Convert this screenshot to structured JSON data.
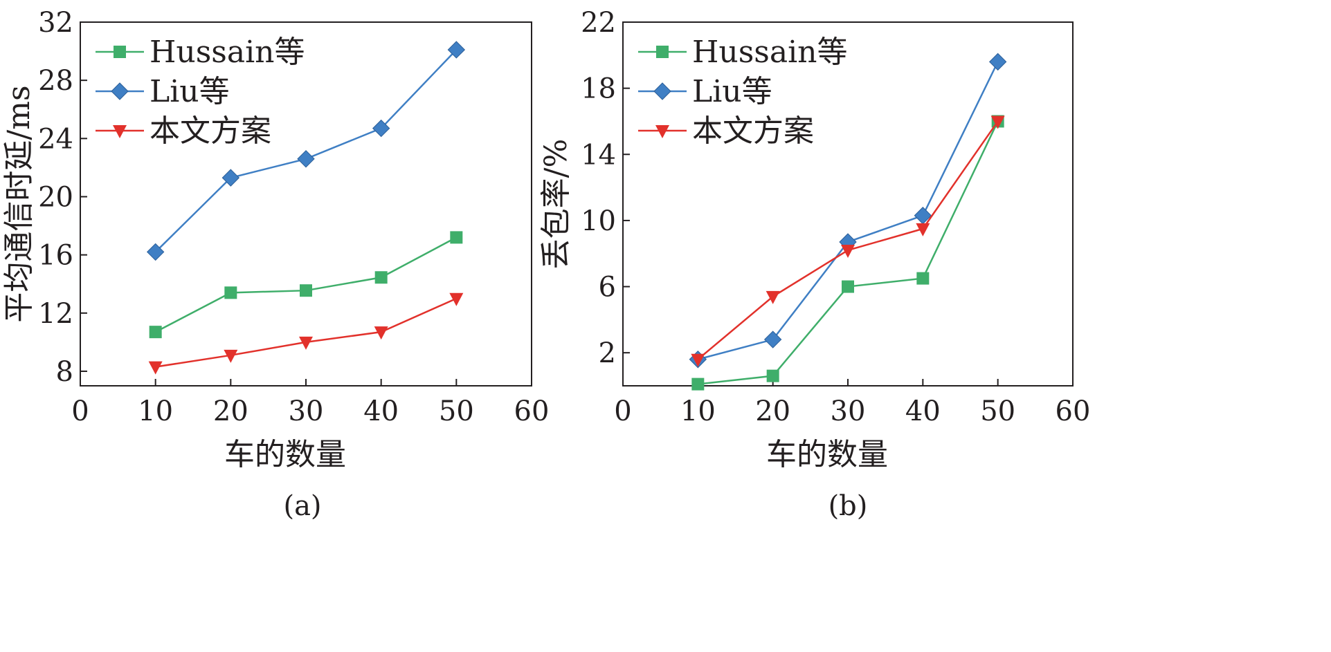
{
  "chart_data": [
    {
      "type": "line",
      "caption": "(a)",
      "xlabel": "车的数量",
      "ylabel": "平均通信时延/ms",
      "x": [
        10,
        20,
        30,
        40,
        50
      ],
      "xlim": [
        0,
        60
      ],
      "xticks": [
        0,
        10,
        20,
        30,
        40,
        50,
        60
      ],
      "ylim": [
        7,
        32
      ],
      "yticks": [
        8,
        12,
        16,
        20,
        24,
        28,
        32
      ],
      "grid": false,
      "legend": "top-left",
      "series": [
        {
          "name": "Hussain等",
          "color": "#3fae6a",
          "marker": "square",
          "values": [
            10.7,
            13.4,
            13.55,
            14.45,
            17.2
          ]
        },
        {
          "name": "Liu等",
          "color": "#3f7fc4",
          "marker": "diamond",
          "values": [
            16.2,
            21.3,
            22.6,
            24.7,
            30.1
          ]
        },
        {
          "name": "本文方案",
          "color": "#e2312b",
          "marker": "triangle-down",
          "values": [
            8.3,
            9.1,
            10.0,
            10.7,
            13.0
          ]
        }
      ]
    },
    {
      "type": "line",
      "caption": "(b)",
      "xlabel": "车的数量",
      "ylabel": "丢包率/%",
      "x": [
        10,
        20,
        30,
        40,
        50
      ],
      "xlim": [
        0,
        60
      ],
      "xticks": [
        0,
        10,
        20,
        30,
        40,
        50,
        60
      ],
      "ylim": [
        0,
        22
      ],
      "yticks": [
        2,
        6,
        10,
        14,
        18,
        22
      ],
      "grid": false,
      "legend": "top-left",
      "series": [
        {
          "name": "Hussain等",
          "color": "#3fae6a",
          "marker": "square",
          "values": [
            0.1,
            0.6,
            6.0,
            6.5,
            16.0
          ]
        },
        {
          "name": "Liu等",
          "color": "#3f7fc4",
          "marker": "diamond",
          "values": [
            1.6,
            2.8,
            8.7,
            10.3,
            19.6
          ]
        },
        {
          "name": "本文方案",
          "color": "#e2312b",
          "marker": "triangle-down",
          "values": [
            1.6,
            5.4,
            8.2,
            9.5,
            16.0
          ]
        }
      ]
    }
  ]
}
